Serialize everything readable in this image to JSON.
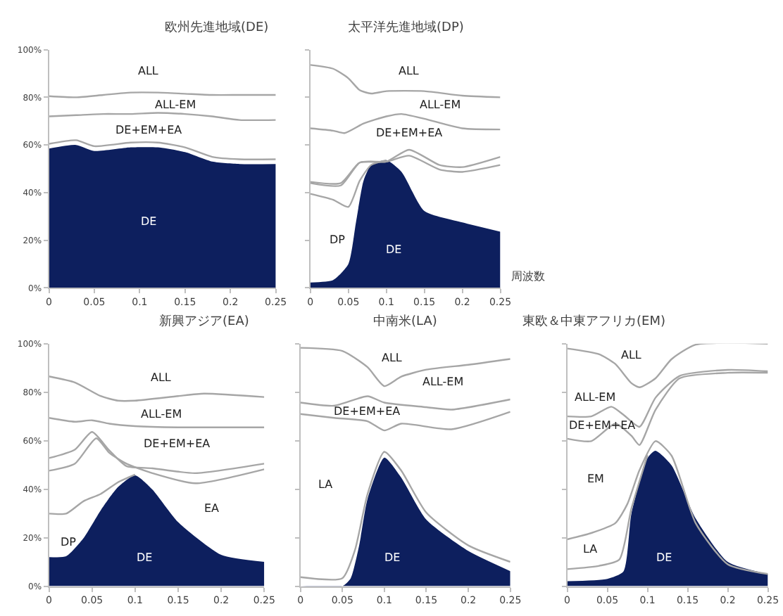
{
  "chart_data": [
    {
      "type": "line",
      "title": "欧州先進地域(DE)",
      "xlim": [
        0,
        0.25
      ],
      "xticks": [
        0,
        0.05,
        0.1,
        0.15,
        0.2,
        0.25
      ],
      "ylim": [
        0,
        100
      ],
      "yticks": [
        {
          "value": 0,
          "label": "0%"
        },
        {
          "value": 20,
          "label": "20%"
        },
        {
          "value": 40,
          "label": "40%"
        },
        {
          "value": 60,
          "label": "60%"
        },
        {
          "value": 80,
          "label": "80%"
        },
        {
          "value": 100,
          "label": "100%"
        }
      ],
      "line_style": "solid",
      "series": [
        {
          "type": "area",
          "color": "#0d1f5e",
          "x": [
            0,
            0.03,
            0.05,
            0.09,
            0.12,
            0.15,
            0.18,
            0.21,
            0.25
          ],
          "values": [
            58.5,
            60,
            57.5,
            59,
            59,
            57,
            53,
            52,
            52
          ]
        },
        {
          "color": "#a6a6a6",
          "x": [
            0,
            0.03,
            0.05,
            0.09,
            0.12,
            0.15,
            0.18,
            0.21,
            0.25
          ],
          "values": [
            60.5,
            62,
            59.5,
            61,
            61,
            59,
            55,
            54,
            54
          ]
        },
        {
          "color": "#a6a6a6",
          "x": [
            0,
            0.03,
            0.06,
            0.09,
            0.12,
            0.15,
            0.18,
            0.21,
            0.25
          ],
          "values": [
            72,
            72.5,
            73,
            73,
            73.5,
            73,
            72,
            70.5,
            70.5
          ]
        },
        {
          "color": "#a6a6a6",
          "x": [
            0,
            0.03,
            0.06,
            0.09,
            0.12,
            0.15,
            0.18,
            0.21,
            0.25
          ],
          "values": [
            80.5,
            80,
            81,
            82,
            82,
            81.5,
            81,
            81,
            81
          ]
        }
      ],
      "annotations": [
        "ALL",
        "ALL-EM",
        "DE+EM+EA",
        "DE"
      ]
    },
    {
      "type": "line",
      "title": "太平洋先進地域(DP)",
      "xlabel": "周波数",
      "xlim": [
        0,
        0.25
      ],
      "xticks": [
        0,
        0.05,
        0.1,
        0.15,
        0.2,
        0.25
      ],
      "ylim": [
        0,
        100
      ],
      "yticks": [
        {
          "value": 0,
          "label": null
        },
        {
          "value": 20,
          "label": null
        },
        {
          "value": 40,
          "label": null
        },
        {
          "value": 60,
          "label": null
        },
        {
          "value": 80,
          "label": null
        },
        {
          "value": 100,
          "label": null
        }
      ],
      "tick_labels": "x",
      "line_style": "solid",
      "series": [
        {
          "type": "area",
          "color": "#0d1f5e",
          "x": [
            0,
            0.03,
            0.05,
            0.06,
            0.07,
            0.08,
            0.1,
            0.12,
            0.15,
            0.2,
            0.25
          ],
          "values": [
            2.3,
            3.3,
            10,
            27.5,
            45,
            51.6,
            53.6,
            48.7,
            32.3,
            27.5,
            23.6
          ]
        },
        {
          "color": "#a6a6a6",
          "x": [
            0,
            0.03,
            0.05,
            0.065,
            0.08,
            0.1
          ],
          "values": [
            39.5,
            37,
            34,
            45,
            51.6,
            53.6
          ]
        },
        {
          "color": "#a6a6a6",
          "x": [
            0,
            0.04,
            0.065,
            0.1,
            0.13,
            0.17,
            0.2,
            0.25
          ],
          "values": [
            44,
            43,
            52.6,
            53,
            55.5,
            49.7,
            48.7,
            51.6
          ]
        },
        {
          "color": "#a6a6a6",
          "x": [
            0,
            0.04,
            0.065,
            0.1,
            0.13,
            0.17,
            0.2,
            0.25
          ],
          "values": [
            44.5,
            44,
            52.6,
            53,
            58,
            51.6,
            50.7,
            55
          ]
        },
        {
          "color": "#a6a6a6",
          "x": [
            0,
            0.03,
            0.045,
            0.07,
            0.1,
            0.12,
            0.15,
            0.2,
            0.25
          ],
          "values": [
            67,
            66,
            65,
            69,
            72,
            73,
            71,
            67,
            66.5
          ]
        },
        {
          "color": "#a6a6a6",
          "x": [
            0,
            0.03,
            0.05,
            0.065,
            0.08,
            0.1,
            0.15,
            0.2,
            0.25
          ],
          "values": [
            93.6,
            92,
            88,
            83,
            81.6,
            82.6,
            82.6,
            80.7,
            80
          ]
        }
      ],
      "annotations": [
        "ALL",
        "ALL-EM",
        "DE+EM+EA",
        "DP",
        "DE"
      ]
    },
    {
      "type": "line",
      "title": "新興アジア(EA)",
      "xlim": [
        0,
        0.25
      ],
      "xticks": [
        0,
        0.05,
        0.1,
        0.15,
        0.2,
        0.25
      ],
      "ylim": [
        0,
        100
      ],
      "yticks": [
        {
          "value": 0,
          "label": "0%"
        },
        {
          "value": 20,
          "label": "20%"
        },
        {
          "value": 40,
          "label": "40%"
        },
        {
          "value": 60,
          "label": "60%"
        },
        {
          "value": 80,
          "label": "80%"
        },
        {
          "value": 100,
          "label": "100%"
        }
      ],
      "line_style": "solid",
      "series": [
        {
          "type": "area",
          "color": "#0d1f5e",
          "x": [
            0,
            0.02,
            0.04,
            0.06,
            0.08,
            0.1,
            0.12,
            0.15,
            0.2,
            0.25
          ],
          "values": [
            12,
            12.3,
            19.7,
            31.2,
            40.8,
            45.7,
            39.9,
            26.4,
            12.9,
            10
          ]
        },
        {
          "color": "#a6a6a6",
          "x": [
            0,
            0.02,
            0.04,
            0.06,
            0.08,
            0.1
          ],
          "values": [
            29.9,
            29.9,
            35,
            38,
            42.8,
            46
          ]
        },
        {
          "color": "#a6a6a6",
          "x": [
            0,
            0.03,
            0.055,
            0.07,
            0.09,
            0.12,
            0.17,
            0.25
          ],
          "values": [
            47.6,
            50.5,
            61,
            55,
            50.5,
            46.6,
            42.4,
            48.2
          ]
        },
        {
          "color": "#a6a6a6",
          "x": [
            0,
            0.03,
            0.05,
            0.07,
            0.09,
            0.12,
            0.17,
            0.25
          ],
          "values": [
            52.8,
            56.3,
            63.6,
            56,
            49.5,
            48.6,
            46.6,
            50.5
          ]
        },
        {
          "color": "#a6a6a6",
          "x": [
            0,
            0.03,
            0.05,
            0.07,
            0.1,
            0.15,
            0.25
          ],
          "values": [
            69.4,
            67.8,
            68.4,
            67,
            66,
            65.5,
            65.5
          ]
        },
        {
          "color": "#a6a6a6",
          "x": [
            0,
            0.03,
            0.06,
            0.08,
            0.1,
            0.15,
            0.18,
            0.25
          ],
          "values": [
            86.5,
            84,
            78.4,
            76.5,
            76.5,
            78.4,
            79.4,
            78
          ]
        }
      ],
      "annotations": [
        "ALL",
        "ALL-EM",
        "DE+EM+EA",
        "EA",
        "DP",
        "DE"
      ]
    },
    {
      "type": "line",
      "title": "中南米(LA)",
      "xlim": [
        0,
        0.25
      ],
      "xticks": [
        0,
        0.05,
        0.1,
        0.15,
        0.2,
        0.25
      ],
      "ylim": [
        0,
        100
      ],
      "yticks": [
        {
          "value": 0,
          "label": null
        },
        {
          "value": 20,
          "label": null
        },
        {
          "value": 40,
          "label": null
        },
        {
          "value": 60,
          "label": null
        },
        {
          "value": 80,
          "label": null
        },
        {
          "value": 100,
          "label": null
        }
      ],
      "tick_labels": "x",
      "line_style": "solid",
      "series": [
        {
          "type": "area",
          "color": "#0d1f5e",
          "x": [
            0,
            0.05,
            0.06,
            0.07,
            0.08,
            0.1,
            0.12,
            0.15,
            0.2,
            0.25
          ],
          "values": [
            0,
            0,
            3.3,
            16.8,
            36,
            53,
            44.8,
            27.4,
            14.5,
            6.2
          ]
        },
        {
          "color": "#a6a6a6",
          "x": [
            0,
            0.05,
            0.065,
            0.08,
            0.1,
            0.12,
            0.15,
            0.2,
            0.25
          ],
          "values": [
            3.7,
            3.3,
            14.9,
            38,
            55.4,
            47.7,
            30.3,
            16.8,
            10
          ]
        },
        {
          "color": "#a6a6a6",
          "x": [
            0,
            0.04,
            0.08,
            0.1,
            0.12,
            0.18,
            0.25
          ],
          "values": [
            71,
            69.4,
            68,
            64.2,
            67,
            64.7,
            71.9
          ]
        },
        {
          "color": "#a6a6a6",
          "x": [
            0,
            0.04,
            0.08,
            0.1,
            0.15,
            0.18,
            0.25
          ],
          "values": [
            75.7,
            74.4,
            78.3,
            75.7,
            73.8,
            72.8,
            77
          ]
        },
        {
          "color": "#a6a6a6",
          "x": [
            0,
            0.05,
            0.08,
            0.1,
            0.12,
            0.15,
            0.2,
            0.25
          ],
          "values": [
            98.3,
            97,
            90.3,
            82.5,
            86.4,
            89.3,
            91.3,
            93.7
          ]
        }
      ],
      "annotations": [
        "ALL",
        "ALL-EM",
        "DE+EM+EA",
        "LA",
        "DE"
      ]
    },
    {
      "type": "line",
      "title": "東欧＆中東アフリカ(EM)",
      "xlim": [
        0,
        0.25
      ],
      "xticks": [
        0,
        0.05,
        0.1,
        0.15,
        0.2,
        0.25
      ],
      "ylim": [
        0,
        100
      ],
      "yticks": [
        {
          "value": 0,
          "label": null
        },
        {
          "value": 20,
          "label": null
        },
        {
          "value": 40,
          "label": null
        },
        {
          "value": 60,
          "label": null
        },
        {
          "value": 80,
          "label": null
        },
        {
          "value": 100,
          "label": null
        }
      ],
      "tick_labels": "x",
      "line_style": "solid",
      "series": [
        {
          "type": "area",
          "color": "#0d1f5e",
          "x": [
            0,
            0.05,
            0.07,
            0.08,
            0.1,
            0.11,
            0.13,
            0.16,
            0.2,
            0.25
          ],
          "values": [
            2,
            3,
            6,
            29.9,
            52.8,
            55.8,
            49.8,
            27.9,
            10,
            5
          ]
        },
        {
          "color": "#a6a6a6",
          "x": [
            0,
            0.04,
            0.065,
            0.08,
            0.1
          ],
          "values": [
            7,
            8.4,
            11,
            32,
            54
          ]
        },
        {
          "color": "#a6a6a6",
          "x": [
            0,
            0.03,
            0.06,
            0.075,
            0.09,
            0.11,
            0.13,
            0.16,
            0.2,
            0.25
          ],
          "values": [
            19.3,
            21.9,
            26,
            33.9,
            47.8,
            59.8,
            53.8,
            26,
            9,
            5
          ]
        },
        {
          "color": "#a6a6a6",
          "x": [
            0,
            0.03,
            0.06,
            0.08,
            0.09,
            0.11,
            0.14,
            0.2,
            0.25
          ],
          "values": [
            60.8,
            59.8,
            67,
            62,
            58.2,
            72.7,
            85.7,
            88,
            88
          ]
        },
        {
          "color": "#a6a6a6",
          "x": [
            0,
            0.03,
            0.055,
            0.07,
            0.09,
            0.11,
            0.14,
            0.2,
            0.25
          ],
          "values": [
            70,
            70,
            74,
            70.7,
            65.7,
            77.7,
            86.7,
            89.2,
            88.6
          ]
        },
        {
          "color": "#a6a6a6",
          "x": [
            0,
            0.04,
            0.06,
            0.08,
            0.09,
            0.11,
            0.13,
            0.16,
            0.25
          ],
          "values": [
            98,
            95.6,
            91.6,
            83.7,
            82,
            85.7,
            93.6,
            99.6,
            100
          ]
        }
      ],
      "annotations": [
        "ALL",
        "ALL-EM",
        "DE+EM+EA",
        "EM",
        "LA",
        "DE"
      ]
    }
  ]
}
